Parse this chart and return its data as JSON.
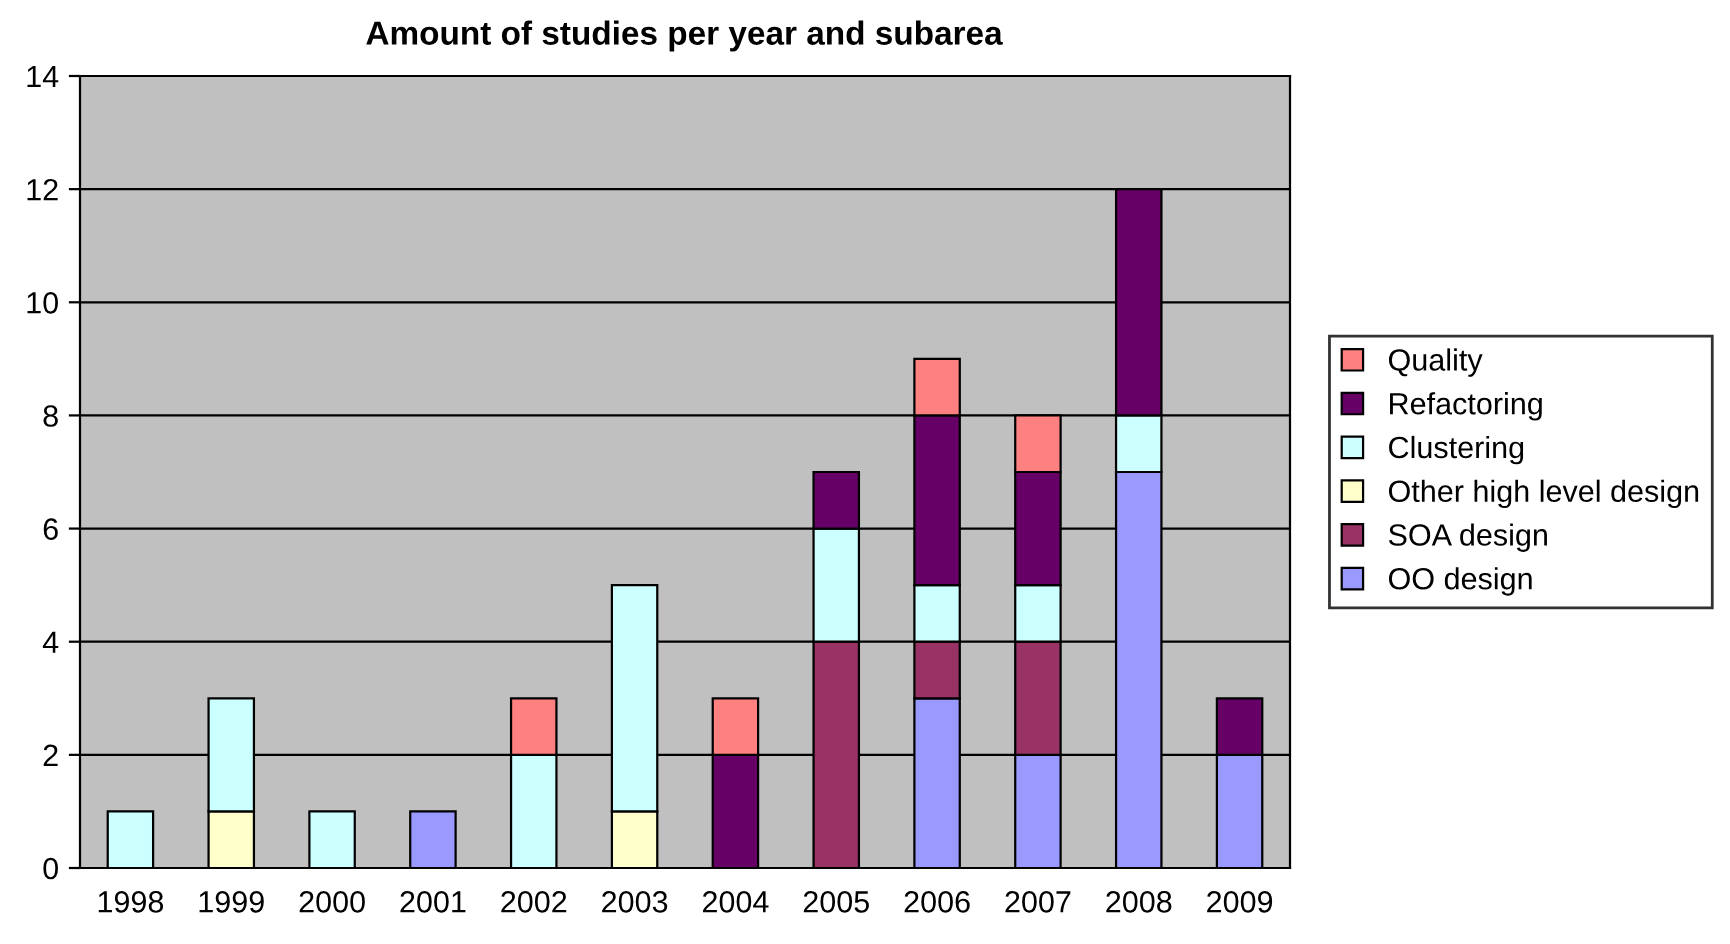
{
  "chart_data": {
    "type": "bar",
    "title": "Amount of studies per year and subarea",
    "stacked": true,
    "categories": [
      "1998",
      "1999",
      "2000",
      "2001",
      "2002",
      "2003",
      "2004",
      "2005",
      "2006",
      "2007",
      "2008",
      "2009"
    ],
    "series": [
      {
        "name": "OO design",
        "color": "#9999ff",
        "values": [
          null,
          null,
          null,
          1,
          null,
          null,
          null,
          null,
          3,
          2,
          7,
          2
        ]
      },
      {
        "name": "SOA design",
        "color": "#993366",
        "values": [
          null,
          null,
          null,
          null,
          null,
          null,
          null,
          4,
          1,
          2,
          null,
          null
        ]
      },
      {
        "name": "Other high level design",
        "color": "#ffffcc",
        "values": [
          null,
          1,
          null,
          null,
          null,
          1,
          null,
          null,
          null,
          null,
          null,
          null
        ]
      },
      {
        "name": "Clustering",
        "color": "#ccffff",
        "values": [
          1,
          2,
          1,
          null,
          2,
          4,
          null,
          2,
          1,
          1,
          1,
          null
        ]
      },
      {
        "name": "Refactoring",
        "color": "#660066",
        "values": [
          null,
          null,
          null,
          null,
          null,
          null,
          2,
          1,
          3,
          2,
          4,
          1
        ]
      },
      {
        "name": "Quality",
        "color": "#ff8080",
        "values": [
          null,
          null,
          null,
          null,
          1,
          null,
          1,
          null,
          1,
          1,
          null,
          null
        ]
      }
    ],
    "ylim": [
      0,
      14
    ],
    "yticks": [
      0,
      2,
      4,
      6,
      8,
      10,
      12,
      14
    ],
    "grid": "y",
    "legend": "right"
  }
}
